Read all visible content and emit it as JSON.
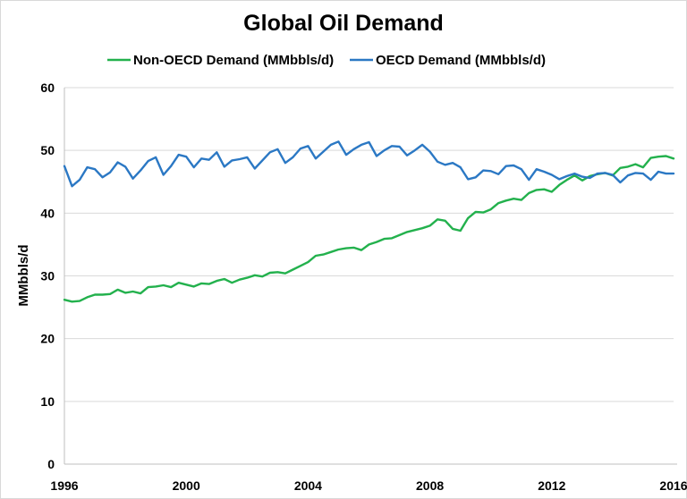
{
  "chart_data": {
    "type": "line",
    "title": "Global Oil Demand",
    "xlabel": "",
    "ylabel": "MMbbls/d",
    "xlim": [
      1996,
      2016
    ],
    "ylim": [
      0,
      60
    ],
    "x_ticks": [
      "1996",
      "2000",
      "2004",
      "2008",
      "2012",
      "2016"
    ],
    "y_ticks": [
      "0",
      "10",
      "20",
      "30",
      "40",
      "50",
      "60"
    ],
    "grid": "horizontal",
    "legend_position": "top",
    "series": [
      {
        "name": "Non-OECD Demand (MMbbls/d)",
        "color": "#23b14d",
        "x": [
          1996,
          1996.25,
          1996.5,
          1996.75,
          1997,
          1997.25,
          1997.5,
          1997.75,
          1998,
          1998.25,
          1998.5,
          1998.75,
          1999,
          1999.25,
          1999.5,
          1999.75,
          2000,
          2000.25,
          2000.5,
          2000.75,
          2001,
          2001.25,
          2001.5,
          2001.75,
          2002,
          2002.25,
          2002.5,
          2002.75,
          2003,
          2003.25,
          2003.5,
          2003.75,
          2004,
          2004.25,
          2004.5,
          2004.75,
          2005,
          2005.25,
          2005.5,
          2005.75,
          2006,
          2006.25,
          2006.5,
          2006.75,
          2007,
          2007.25,
          2007.5,
          2007.75,
          2008,
          2008.25,
          2008.5,
          2008.75,
          2009,
          2009.25,
          2009.5,
          2009.75,
          2010,
          2010.25,
          2010.5,
          2010.75,
          2011,
          2011.25,
          2011.5,
          2011.75,
          2012,
          2012.25,
          2012.5,
          2012.75,
          2013,
          2013.25,
          2013.5,
          2013.75,
          2014,
          2014.25,
          2014.5,
          2014.75,
          2015,
          2015.25,
          2015.5,
          2015.75,
          2016
        ],
        "y": [
          26.2,
          25.9,
          26.0,
          26.6,
          27.0,
          27.0,
          27.1,
          27.8,
          27.3,
          27.5,
          27.2,
          28.2,
          28.3,
          28.5,
          28.2,
          28.9,
          28.6,
          28.3,
          28.8,
          28.7,
          29.2,
          29.5,
          28.9,
          29.4,
          29.7,
          30.1,
          29.9,
          30.5,
          30.6,
          30.4,
          31.0,
          31.6,
          32.2,
          33.2,
          33.4,
          33.8,
          34.2,
          34.4,
          34.5,
          34.1,
          35.0,
          35.4,
          35.9,
          36.0,
          36.5,
          37.0,
          37.3,
          37.6,
          38.0,
          39.0,
          38.8,
          37.5,
          37.2,
          39.2,
          40.2,
          40.1,
          40.6,
          41.6,
          42.0,
          42.3,
          42.1,
          43.2,
          43.7,
          43.8,
          43.4,
          44.5,
          45.3,
          46.0,
          45.2,
          45.9,
          46.2,
          46.4,
          46.0,
          47.2,
          47.4,
          47.8,
          47.3,
          48.8,
          49.0,
          49.1,
          48.7
        ]
      },
      {
        "name": "OECD Demand (MMbbls/d)",
        "color": "#2b78c4",
        "x": [
          1996,
          1996.25,
          1996.5,
          1996.75,
          1997,
          1997.25,
          1997.5,
          1997.75,
          1998,
          1998.25,
          1998.5,
          1998.75,
          1999,
          1999.25,
          1999.5,
          1999.75,
          2000,
          2000.25,
          2000.5,
          2000.75,
          2001,
          2001.25,
          2001.5,
          2001.75,
          2002,
          2002.25,
          2002.5,
          2002.75,
          2003,
          2003.25,
          2003.5,
          2003.75,
          2004,
          2004.25,
          2004.5,
          2004.75,
          2005,
          2005.25,
          2005.5,
          2005.75,
          2006,
          2006.25,
          2006.5,
          2006.75,
          2007,
          2007.25,
          2007.5,
          2007.75,
          2008,
          2008.25,
          2008.5,
          2008.75,
          2009,
          2009.25,
          2009.5,
          2009.75,
          2010,
          2010.25,
          2010.5,
          2010.75,
          2011,
          2011.25,
          2011.5,
          2011.75,
          2012,
          2012.25,
          2012.5,
          2012.75,
          2013,
          2013.25,
          2013.5,
          2013.75,
          2014,
          2014.25,
          2014.5,
          2014.75,
          2015,
          2015.25,
          2015.5,
          2015.75,
          2016
        ],
        "y": [
          47.5,
          44.3,
          45.3,
          47.3,
          47.0,
          45.7,
          46.5,
          48.1,
          47.4,
          45.5,
          46.8,
          48.3,
          48.9,
          46.1,
          47.5,
          49.3,
          49.0,
          47.3,
          48.7,
          48.5,
          49.7,
          47.4,
          48.4,
          48.6,
          48.9,
          47.1,
          48.4,
          49.7,
          50.2,
          48.0,
          48.9,
          50.3,
          50.7,
          48.7,
          49.8,
          50.9,
          51.4,
          49.3,
          50.2,
          50.9,
          51.3,
          49.1,
          50.0,
          50.7,
          50.6,
          49.2,
          50.0,
          50.9,
          49.8,
          48.2,
          47.7,
          48.0,
          47.3,
          45.4,
          45.7,
          46.8,
          46.7,
          46.2,
          47.5,
          47.6,
          47.0,
          45.3,
          47.0,
          46.6,
          46.1,
          45.4,
          45.9,
          46.3,
          45.8,
          45.6,
          46.3,
          46.4,
          46.1,
          44.9,
          46.0,
          46.4,
          46.3,
          45.3,
          46.6,
          46.3,
          46.3
        ]
      }
    ]
  }
}
